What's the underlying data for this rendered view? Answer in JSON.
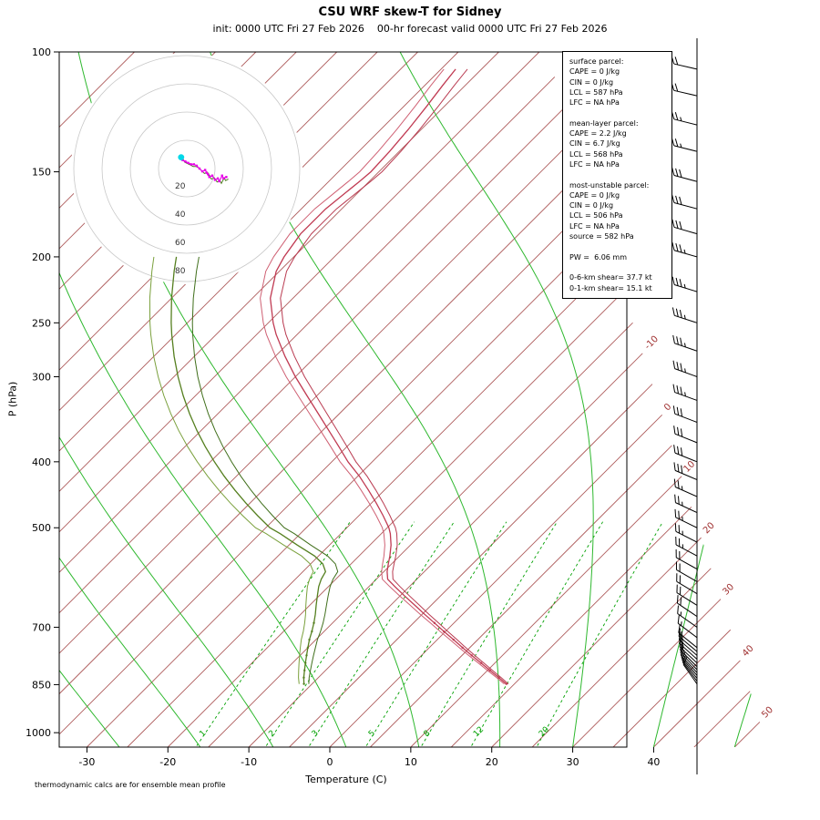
{
  "header": {
    "title": "CSU WRF skew-T for Sidney",
    "subtitle": "init: 0000 UTC Fri 27 Feb 2026    00-hr forecast valid 0000 UTC Fri 27 Feb 2026"
  },
  "footer": {
    "note": "thermodynamic calcs are for ensemble mean profile"
  },
  "axes": {
    "x_label": "Temperature (C)",
    "y_label": "P (hPa)",
    "pressure_ticks": [
      100,
      150,
      200,
      250,
      300,
      400,
      500,
      700,
      850,
      1000
    ],
    "temp_ticks": [
      -30,
      -20,
      -10,
      0,
      10,
      20,
      30,
      40
    ]
  },
  "info_box": {
    "lines": [
      "surface parcel:",
      "CAPE = 0 J/kg",
      "CIN = 0 J/kg",
      "LCL = 587 hPa",
      "LFC = NA hPa",
      "",
      "mean-layer parcel:",
      "CAPE = 2.2 J/kg",
      "CIN = 6.7 J/kg",
      "LCL = 568 hPa",
      "LFC = NA hPa",
      "",
      "most-unstable parcel:",
      "CAPE = 0 J/kg",
      "CIN = 0 J/kg",
      "LCL = 506 hPa",
      "LFC = NA hPa",
      "source = 582 hPa",
      "",
      "PW =  6.06 mm",
      "",
      "0-6-km shear= 37.7 kt",
      "0-1-km shear= 15.1 kt"
    ]
  },
  "chart_data": {
    "type": "line",
    "title": "CSU WRF skew-T for Sidney",
    "x_axis": {
      "label": "Temperature (C)",
      "ticks": [
        -30,
        -20,
        -10,
        0,
        10,
        20,
        30,
        40
      ]
    },
    "y_axis": {
      "label": "P (hPa)",
      "scale": "log",
      "range": [
        100,
        1050
      ],
      "ticks": [
        100,
        150,
        200,
        250,
        300,
        400,
        500,
        700,
        850,
        1000
      ]
    },
    "isotherms": {
      "min_c": -110,
      "max_c": 50,
      "step_c": 5,
      "labeled_c": [
        -10,
        0,
        10,
        20,
        30,
        40,
        50
      ],
      "color": "#a04040"
    },
    "mixing_ratio_g_kg": {
      "values": [
        1,
        2,
        3,
        5,
        8,
        12,
        20
      ],
      "color": "#00a000"
    },
    "moist_adiabats": {
      "surface_temps_c": [
        -26,
        -16,
        -7,
        2,
        11,
        21,
        30,
        40,
        50
      ],
      "color": "#2eb82e"
    },
    "sounding": {
      "pressure_hPa": [
        848,
        830,
        810,
        790,
        770,
        750,
        730,
        710,
        690,
        670,
        650,
        630,
        610,
        595,
        580,
        565,
        550,
        530,
        510,
        500,
        480,
        460,
        440,
        420,
        400,
        380,
        360,
        340,
        320,
        300,
        280,
        260,
        250,
        230,
        210,
        200,
        185,
        170,
        155,
        150,
        140,
        130,
        120,
        112,
        106
      ],
      "temperature_c": [
        14.0,
        12.3,
        10.3,
        8.3,
        6.2,
        4.1,
        2.0,
        -0.2,
        -2.4,
        -4.7,
        -7.0,
        -9.4,
        -11.8,
        -13.6,
        -14.6,
        -15.4,
        -16.2,
        -17.4,
        -18.9,
        -19.8,
        -22.0,
        -24.4,
        -27.0,
        -29.8,
        -33.0,
        -36.0,
        -39.2,
        -42.6,
        -46.2,
        -50.0,
        -53.8,
        -57.6,
        -59.4,
        -62.8,
        -65.4,
        -66.2,
        -67.0,
        -67.0,
        -66.2,
        -66.0,
        -66.2,
        -66.6,
        -67.2,
        -67.8,
        -68.2
      ],
      "dew_pressure_hPa": [
        848,
        830,
        810,
        790,
        770,
        750,
        730,
        710,
        690,
        670,
        650,
        630,
        610,
        595,
        580,
        565,
        550,
        530,
        510,
        500,
        480,
        460,
        440,
        420,
        400,
        380,
        360,
        340,
        320,
        300,
        280,
        260,
        250,
        230,
        210,
        200
      ],
      "dewpoint_c": [
        -11.0,
        -11.8,
        -12.6,
        -13.4,
        -14.2,
        -15.0,
        -15.8,
        -16.5,
        -17.3,
        -18.2,
        -19.2,
        -20.2,
        -21.2,
        -21.8,
        -22.2,
        -23.5,
        -25.5,
        -29.0,
        -32.5,
        -34.5,
        -37.5,
        -40.5,
        -43.5,
        -46.5,
        -49.5,
        -52.5,
        -55.5,
        -58.5,
        -61.5,
        -64.5,
        -67.5,
        -70.5,
        -72.0,
        -75.0,
        -78.0,
        -79.5
      ],
      "temp_color": "#c03a52",
      "temp_member_colors": [
        "#cf6073",
        "#b93a50"
      ],
      "dew_color": "#557f1f",
      "dew_member_colors": [
        "#7aa03c",
        "#3f6e1a"
      ],
      "ensemble_spread": {
        "temp_surface_c": 0.25,
        "temp_top_c": 1.2,
        "dew_surface_c": 0.6,
        "dew_top_c": 2.5
      }
    },
    "wind_barbs": {
      "levels_p_spd_dir": [
        [
          848,
          8,
          325
        ],
        [
          840,
          9,
          323
        ],
        [
          832,
          10,
          321
        ],
        [
          824,
          10,
          319
        ],
        [
          816,
          11,
          317
        ],
        [
          808,
          12,
          316
        ],
        [
          800,
          12,
          315
        ],
        [
          790,
          13,
          313
        ],
        [
          780,
          14,
          312
        ],
        [
          770,
          14,
          311
        ],
        [
          760,
          15,
          310
        ],
        [
          750,
          15,
          309
        ],
        [
          725,
          16,
          307
        ],
        [
          700,
          17,
          305
        ],
        [
          675,
          18,
          304
        ],
        [
          650,
          19,
          302
        ],
        [
          625,
          20,
          301
        ],
        [
          600,
          21,
          300
        ],
        [
          575,
          22,
          299
        ],
        [
          550,
          23,
          298
        ],
        [
          525,
          24,
          297
        ],
        [
          500,
          25,
          296
        ],
        [
          475,
          26,
          295
        ],
        [
          450,
          27,
          294
        ],
        [
          425,
          28,
          293
        ],
        [
          400,
          30,
          292
        ],
        [
          375,
          31,
          292
        ],
        [
          350,
          32,
          291
        ],
        [
          325,
          33,
          290
        ],
        [
          300,
          33,
          290
        ],
        [
          275,
          34,
          289
        ],
        [
          250,
          35,
          288
        ],
        [
          225,
          34,
          287
        ],
        [
          200,
          33,
          286
        ],
        [
          185,
          32,
          286
        ],
        [
          170,
          30,
          285
        ],
        [
          155,
          28,
          285
        ],
        [
          140,
          26,
          284
        ],
        [
          128,
          24,
          284
        ],
        [
          116,
          22,
          283
        ],
        [
          106,
          20,
          283
        ]
      ]
    },
    "hodograph": {
      "rings_kt": [
        20,
        40,
        60,
        80
      ],
      "u_kt": [
        -4,
        -3,
        -1,
        1,
        3,
        5,
        7,
        9,
        11,
        13,
        15,
        14,
        16,
        18,
        20,
        22,
        23,
        25,
        26,
        28
      ],
      "v_kt": [
        8,
        6,
        5,
        4,
        3,
        3,
        2,
        0,
        -2,
        -1,
        -4,
        -3,
        -6,
        -5,
        -8,
        -7,
        -9,
        -5,
        -7,
        -6
      ],
      "trace_color": "#e800e8",
      "member_color": "#4e7d21",
      "start_dot_color": "#00d8e8",
      "ring_label_color": "#333333"
    }
  }
}
